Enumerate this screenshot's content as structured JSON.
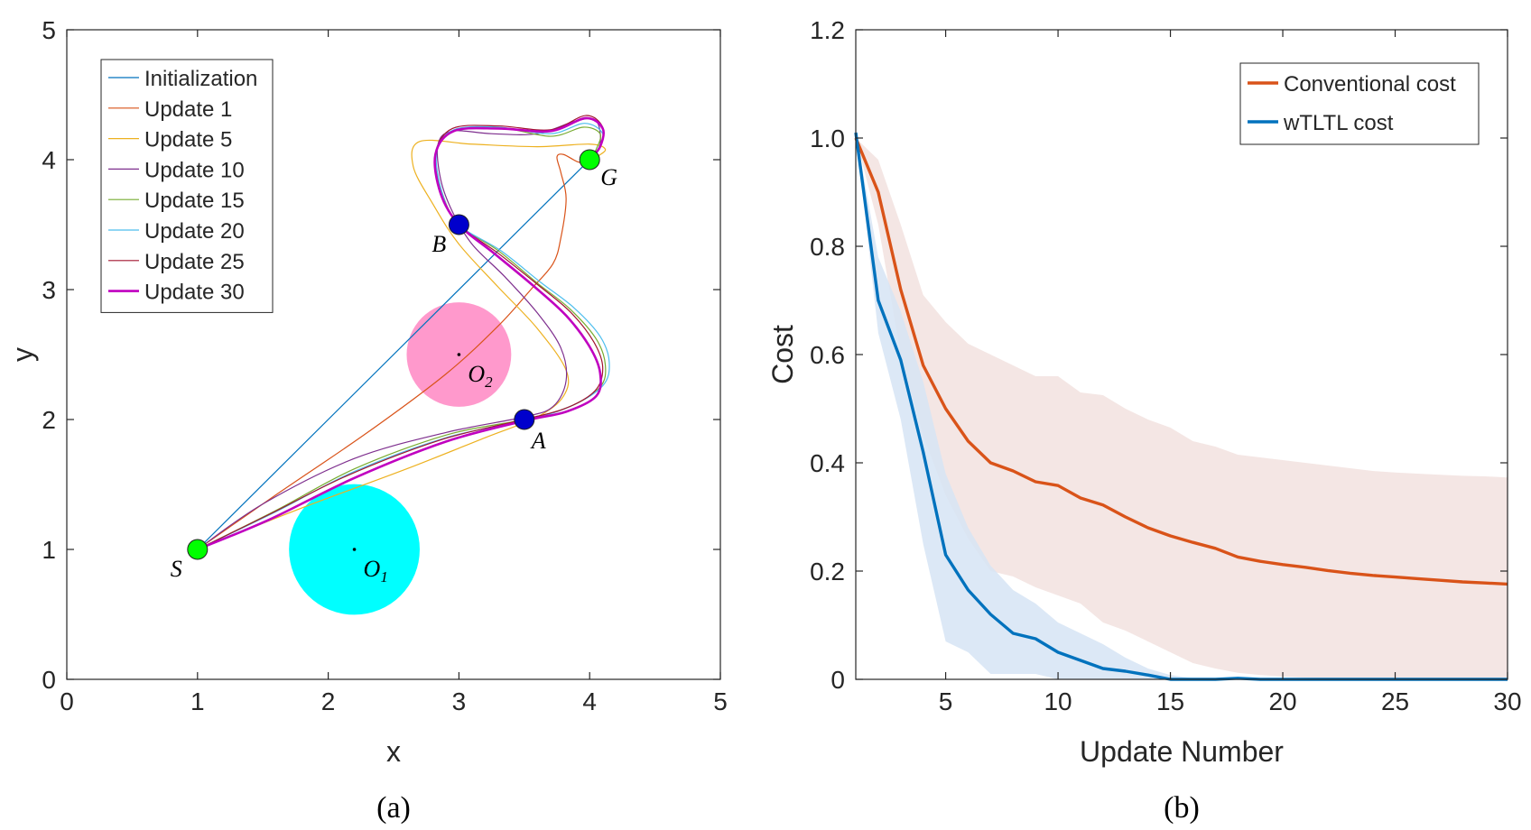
{
  "chart_data": [
    {
      "id": "a",
      "type": "line",
      "subtitle": "(a)",
      "xlabel": "x",
      "ylabel": "y",
      "xlim": [
        0,
        5
      ],
      "ylim": [
        0,
        5
      ],
      "xticks": [
        0,
        1,
        2,
        3,
        4,
        5
      ],
      "yticks": [
        0,
        1,
        2,
        3,
        4,
        5
      ],
      "grid": false,
      "legend_position": "top-left",
      "colors": {
        "initialization": "#0072BD",
        "update1": "#D95319",
        "update5": "#EDB120",
        "update10": "#7E2F8E",
        "update15": "#77AC30",
        "update20": "#4DBEEE",
        "update25": "#A2142F",
        "update30": "#C000C0",
        "obstacle1": "#00FFFF",
        "obstacle2": "#FF99CC",
        "start_goal": "#00FF00",
        "waypoint": "#0000CC"
      },
      "obstacles": [
        {
          "name": "O1",
          "sub": "1",
          "center": [
            2.2,
            1.0
          ],
          "radius": 0.5
        },
        {
          "name": "O2",
          "sub": "2",
          "center": [
            3.0,
            2.5
          ],
          "radius": 0.4
        }
      ],
      "waypoints": [
        {
          "label": "S",
          "point": [
            1.0,
            1.0
          ],
          "kind": "start_goal"
        },
        {
          "label": "G",
          "point": [
            4.0,
            4.0
          ],
          "kind": "start_goal"
        },
        {
          "label": "A",
          "point": [
            3.5,
            2.0
          ],
          "kind": "waypoint"
        },
        {
          "label": "B",
          "point": [
            3.0,
            3.5
          ],
          "kind": "waypoint"
        }
      ],
      "series": [
        {
          "name": "Initialization",
          "color_key": "initialization",
          "width": 1.2,
          "x": [
            1.0,
            4.0
          ],
          "y": [
            1.0,
            4.0
          ]
        },
        {
          "name": "Update 1",
          "color_key": "update1",
          "width": 1.2,
          "x": [
            1.0,
            1.6,
            2.3,
            2.9,
            3.3,
            3.55,
            3.72,
            3.78,
            3.82,
            3.78,
            3.75,
            3.8,
            3.92,
            4.0
          ],
          "y": [
            1.0,
            1.42,
            1.9,
            2.35,
            2.72,
            3.0,
            3.2,
            3.4,
            3.7,
            3.9,
            4.02,
            4.04,
            3.98,
            4.0
          ]
        },
        {
          "name": "Update 5",
          "color_key": "update5",
          "width": 1.2,
          "x": [
            1.0,
            1.8,
            2.6,
            3.2,
            3.6,
            3.8,
            3.82,
            3.6,
            3.3,
            3.0,
            2.8,
            2.65,
            2.7,
            3.1,
            3.6,
            4.0,
            4.12,
            4.05,
            4.0
          ],
          "y": [
            1.0,
            1.32,
            1.62,
            1.86,
            2.02,
            2.18,
            2.38,
            2.7,
            3.02,
            3.35,
            3.66,
            3.95,
            4.14,
            4.12,
            4.1,
            4.12,
            4.08,
            4.02,
            4.0
          ]
        },
        {
          "name": "Update 10",
          "color_key": "update10",
          "width": 1.2,
          "x": [
            1.0,
            1.5,
            2.2,
            2.9,
            3.5,
            3.72,
            3.82,
            3.78,
            3.6,
            3.35,
            3.1,
            2.95,
            2.86,
            2.84,
            2.95,
            3.25,
            3.6,
            3.9,
            4.05,
            4.08,
            4.0
          ],
          "y": [
            1.0,
            1.35,
            1.7,
            1.9,
            2.02,
            2.1,
            2.3,
            2.55,
            2.82,
            3.1,
            3.35,
            3.6,
            3.85,
            4.12,
            4.22,
            4.2,
            4.2,
            4.3,
            4.3,
            4.12,
            4.0
          ]
        },
        {
          "name": "Update 15",
          "color_key": "update15",
          "width": 1.2,
          "x": [
            1.0,
            1.6,
            2.2,
            2.9,
            3.5,
            3.85,
            4.08,
            4.12,
            4.05,
            3.85,
            3.6,
            3.3,
            3.0,
            2.87,
            2.82,
            2.95,
            3.3,
            3.7,
            3.95,
            4.08,
            4.05,
            4.0
          ],
          "y": [
            1.0,
            1.3,
            1.62,
            1.88,
            2.0,
            2.1,
            2.25,
            2.42,
            2.62,
            2.85,
            3.05,
            3.3,
            3.5,
            3.75,
            4.05,
            4.22,
            4.25,
            4.18,
            4.25,
            4.2,
            4.08,
            4.0
          ]
        },
        {
          "name": "Update 20",
          "color_key": "update20",
          "width": 1.2,
          "x": [
            1.0,
            1.6,
            2.2,
            2.9,
            3.5,
            3.85,
            4.1,
            4.15,
            4.08,
            3.88,
            3.62,
            3.32,
            3.0,
            2.87,
            2.83,
            2.96,
            3.3,
            3.7,
            3.96,
            4.1,
            4.06,
            4.0
          ],
          "y": [
            1.0,
            1.29,
            1.6,
            1.86,
            1.99,
            2.1,
            2.26,
            2.44,
            2.64,
            2.86,
            3.06,
            3.3,
            3.5,
            3.75,
            4.06,
            4.23,
            4.25,
            4.2,
            4.28,
            4.2,
            4.07,
            4.0
          ]
        },
        {
          "name": "Update 25",
          "color_key": "update25",
          "width": 1.2,
          "x": [
            1.0,
            1.55,
            2.15,
            2.85,
            3.45,
            3.8,
            4.04,
            4.1,
            4.03,
            3.85,
            3.6,
            3.3,
            3.0,
            2.86,
            2.82,
            2.95,
            3.3,
            3.7,
            3.97,
            4.1,
            4.08,
            4.0
          ],
          "y": [
            1.0,
            1.27,
            1.57,
            1.84,
            1.99,
            2.08,
            2.22,
            2.4,
            2.6,
            2.83,
            3.04,
            3.28,
            3.5,
            3.74,
            4.04,
            4.24,
            4.26,
            4.23,
            4.34,
            4.25,
            4.1,
            4.0
          ]
        },
        {
          "name": "Update 30",
          "color_key": "update30",
          "width": 2.6,
          "x": [
            1.0,
            1.55,
            2.2,
            2.9,
            3.5,
            3.82,
            4.05,
            4.08,
            4.0,
            3.82,
            3.58,
            3.28,
            3.0,
            2.86,
            2.82,
            2.96,
            3.3,
            3.7,
            3.97,
            4.1,
            4.08,
            4.0
          ],
          "y": [
            1.0,
            1.23,
            1.55,
            1.83,
            1.99,
            2.06,
            2.18,
            2.36,
            2.56,
            2.8,
            3.02,
            3.27,
            3.5,
            3.74,
            4.04,
            4.22,
            4.24,
            4.22,
            4.32,
            4.24,
            4.1,
            4.0
          ]
        }
      ]
    },
    {
      "id": "b",
      "type": "line",
      "subtitle": "(b)",
      "xlabel": "Update Number",
      "ylabel": "Cost",
      "xlim": [
        1,
        30
      ],
      "ylim": [
        0,
        1.2
      ],
      "xticks": [
        5,
        10,
        15,
        20,
        25,
        30
      ],
      "yticks": [
        0,
        0.2,
        0.4,
        0.6,
        0.8,
        1.0,
        1.2
      ],
      "ytick_labels": [
        "0",
        "0.2",
        "0.4",
        "0.6",
        "0.8",
        "1.0",
        "1.2"
      ],
      "grid": false,
      "legend_position": "top-right",
      "colors": {
        "conventional": "#D95319",
        "conventional_band": "#F2E2DF",
        "wtltl": "#0072BD",
        "wtltl_band": "#D6E4F5"
      },
      "x": [
        1,
        2,
        3,
        4,
        5,
        6,
        7,
        8,
        9,
        10,
        11,
        12,
        13,
        14,
        15,
        16,
        17,
        18,
        19,
        20,
        21,
        22,
        23,
        24,
        25,
        26,
        27,
        28,
        29,
        30
      ],
      "series": [
        {
          "name": "Conventional cost",
          "color_key": "conventional",
          "band_key": "conventional_band",
          "values": [
            1.0,
            0.9,
            0.72,
            0.58,
            0.5,
            0.44,
            0.4,
            0.385,
            0.365,
            0.358,
            0.335,
            0.322,
            0.3,
            0.28,
            0.265,
            0.253,
            0.242,
            0.226,
            0.218,
            0.212,
            0.207,
            0.201,
            0.196,
            0.192,
            0.189,
            0.186,
            0.183,
            0.18,
            0.178,
            0.176
          ],
          "upper": [
            1.0,
            0.96,
            0.84,
            0.71,
            0.66,
            0.62,
            0.6,
            0.58,
            0.56,
            0.56,
            0.53,
            0.525,
            0.5,
            0.48,
            0.465,
            0.44,
            0.43,
            0.415,
            0.41,
            0.405,
            0.4,
            0.395,
            0.39,
            0.385,
            0.382,
            0.38,
            0.378,
            0.376,
            0.375,
            0.373
          ],
          "lower": [
            1.0,
            0.84,
            0.6,
            0.45,
            0.34,
            0.26,
            0.2,
            0.19,
            0.17,
            0.155,
            0.14,
            0.105,
            0.09,
            0.07,
            0.05,
            0.03,
            0.02,
            0.012,
            0.008,
            0.005,
            0.003,
            0.002,
            0.001,
            0.0,
            0.0,
            0.0,
            0.0,
            0.0,
            0.0,
            0.0
          ]
        },
        {
          "name": "wTLTL cost",
          "color_key": "wtltl",
          "band_key": "wtltl_band",
          "values": [
            1.01,
            0.7,
            0.59,
            0.42,
            0.23,
            0.165,
            0.12,
            0.085,
            0.075,
            0.05,
            0.035,
            0.02,
            0.015,
            0.008,
            0.0,
            0.0,
            0.0,
            0.002,
            0.0,
            0.0,
            0.0,
            0.0,
            0.0,
            0.0,
            0.0,
            0.0,
            0.0,
            0.0,
            0.0,
            0.0
          ],
          "upper": [
            1.01,
            0.78,
            0.68,
            0.55,
            0.38,
            0.28,
            0.21,
            0.165,
            0.14,
            0.105,
            0.085,
            0.065,
            0.04,
            0.02,
            0.008,
            0.002,
            0.0,
            0.0,
            0.0,
            0.0,
            0.0,
            0.0,
            0.0,
            0.0,
            0.0,
            0.0,
            0.0,
            0.0,
            0.0,
            0.0
          ],
          "lower": [
            1.01,
            0.64,
            0.48,
            0.25,
            0.07,
            0.05,
            0.01,
            0.01,
            0.01,
            0.0,
            0.0,
            0.0,
            0.0,
            0.0,
            0.0,
            0.0,
            0.0,
            0.0,
            0.0,
            0.0,
            0.0,
            0.0,
            0.0,
            0.0,
            0.0,
            0.0,
            0.0,
            0.0,
            0.0,
            0.0
          ]
        }
      ]
    }
  ]
}
